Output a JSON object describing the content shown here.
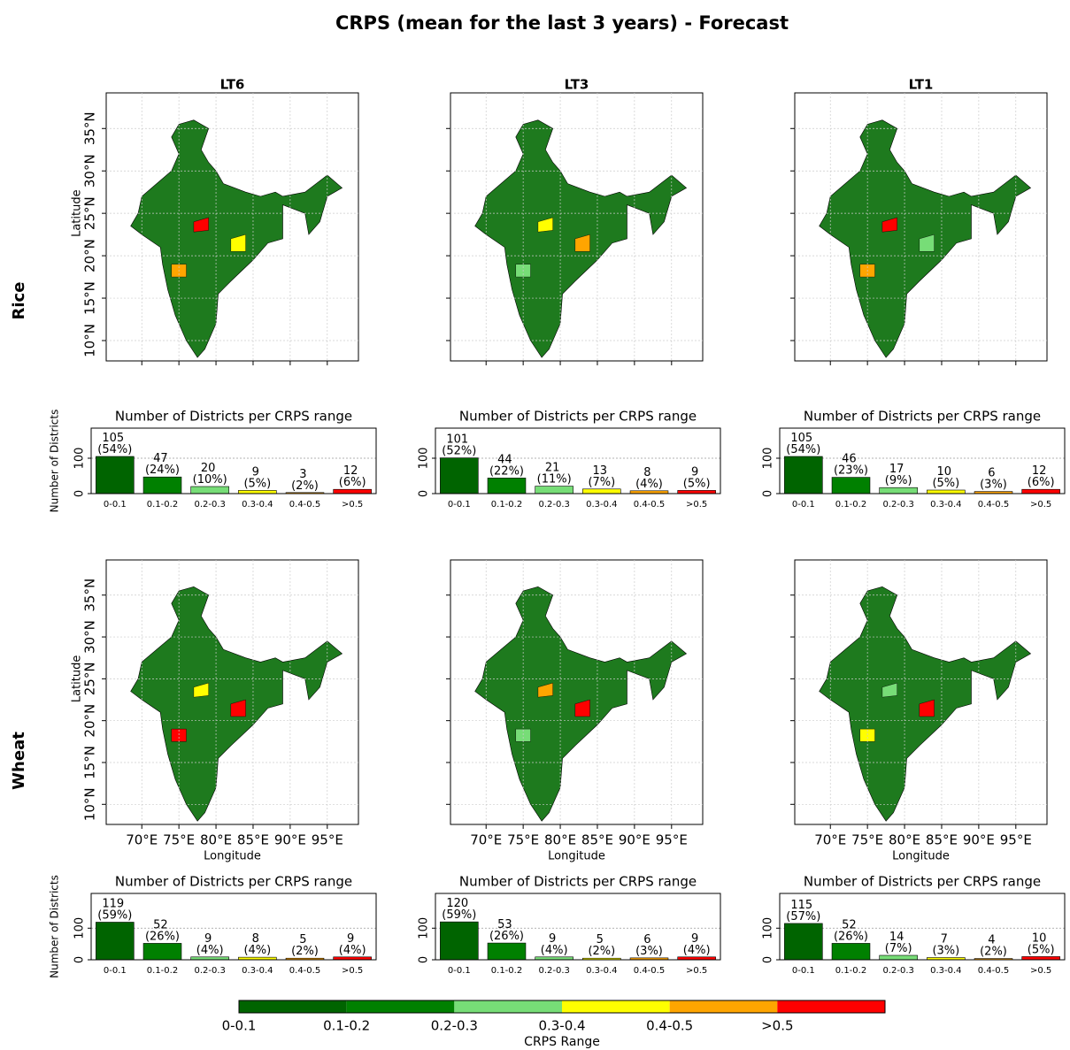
{
  "title": "CRPS (mean for the last 3 years) - Forecast",
  "rows": [
    "Rice",
    "Wheat"
  ],
  "columns": [
    "LT6",
    "LT3",
    "LT1"
  ],
  "map": {
    "xlabel": "Longitude",
    "ylabel": "Latitude",
    "xlim": [
      65.2,
      99.2
    ],
    "ylim": [
      7.6,
      39.2
    ],
    "xticks": [
      {
        "value": 70,
        "label": "70°E"
      },
      {
        "value": 75,
        "label": "75°E"
      },
      {
        "value": 80,
        "label": "80°E"
      },
      {
        "value": 85,
        "label": "85°E"
      },
      {
        "value": 90,
        "label": "90°E"
      },
      {
        "value": 95,
        "label": "95°E"
      }
    ],
    "yticks": [
      {
        "value": 10,
        "label": "10°N"
      },
      {
        "value": 15,
        "label": "15°N"
      },
      {
        "value": 20,
        "label": "20°N"
      },
      {
        "value": 25,
        "label": "25°N"
      },
      {
        "value": 30,
        "label": "30°N"
      },
      {
        "value": 35,
        "label": "35°N"
      }
    ],
    "grid": true
  },
  "colorbar": {
    "label": "CRPS Range",
    "categories": [
      "0-0.1",
      "0.1-0.2",
      "0.2-0.3",
      "0.3-0.4",
      "0.4-0.5",
      ">0.5"
    ],
    "colors": [
      "#006400",
      "#008000",
      "#77dd77",
      "#ffff00",
      "#ffa500",
      "#ff0000"
    ]
  },
  "chart_data": [
    {
      "type": "bar",
      "title": "Number of Districts per CRPS range",
      "ylabel": "Number of Districts",
      "categories": [
        "0-0.1",
        "0.1-0.2",
        "0.2-0.3",
        "0.3-0.4",
        "0.4-0.5",
        ">0.5"
      ],
      "values": [
        105,
        47,
        20,
        9,
        3,
        12
      ],
      "value_labels": [
        "105 (54%)",
        "47 (24%)",
        "20 (10%)",
        "9 (5%)",
        "3 (2%)",
        "12 (6%)"
      ],
      "colors": [
        "#006400",
        "#008000",
        "#77dd77",
        "#ffff00",
        "#ffa500",
        "#ff0000"
      ],
      "ylim": [
        0,
        185
      ],
      "yticks": [
        0,
        100
      ]
    },
    {
      "type": "bar",
      "title": "Number of Districts per CRPS range",
      "categories": [
        "0-0.1",
        "0.1-0.2",
        "0.2-0.3",
        "0.3-0.4",
        "0.4-0.5",
        ">0.5"
      ],
      "values": [
        101,
        44,
        21,
        13,
        8,
        9
      ],
      "value_labels": [
        "101 (52%)",
        "44 (22%)",
        "21 (11%)",
        "13 (7%)",
        "8 (4%)",
        "9 (5%)"
      ],
      "colors": [
        "#006400",
        "#008000",
        "#77dd77",
        "#ffff00",
        "#ffa500",
        "#ff0000"
      ],
      "ylim": [
        0,
        185
      ],
      "yticks": [
        0,
        100
      ]
    },
    {
      "type": "bar",
      "title": "Number of Districts per CRPS range",
      "categories": [
        "0-0.1",
        "0.1-0.2",
        "0.2-0.3",
        "0.3-0.4",
        "0.4-0.5",
        ">0.5"
      ],
      "values": [
        105,
        46,
        17,
        10,
        6,
        12
      ],
      "value_labels": [
        "105 (54%)",
        "46 (23%)",
        "17 (9%)",
        "10 (5%)",
        "6 (3%)",
        "12 (6%)"
      ],
      "colors": [
        "#006400",
        "#008000",
        "#77dd77",
        "#ffff00",
        "#ffa500",
        "#ff0000"
      ],
      "ylim": [
        0,
        185
      ],
      "yticks": [
        0,
        100
      ]
    },
    {
      "type": "bar",
      "title": "Number of Districts per CRPS range",
      "ylabel": "Number of Districts",
      "categories": [
        "0-0.1",
        "0.1-0.2",
        "0.2-0.3",
        "0.3-0.4",
        "0.4-0.5",
        ">0.5"
      ],
      "values": [
        119,
        52,
        9,
        8,
        5,
        9
      ],
      "value_labels": [
        "119 (59%)",
        "52 (26%)",
        "9 (4%)",
        "8 (4%)",
        "5 (2%)",
        "9 (4%)"
      ],
      "colors": [
        "#006400",
        "#008000",
        "#77dd77",
        "#ffff00",
        "#ffa500",
        "#ff0000"
      ],
      "ylim": [
        0,
        210
      ],
      "yticks": [
        0,
        100
      ]
    },
    {
      "type": "bar",
      "title": "Number of Districts per CRPS range",
      "categories": [
        "0-0.1",
        "0.1-0.2",
        "0.2-0.3",
        "0.3-0.4",
        "0.4-0.5",
        ">0.5"
      ],
      "values": [
        120,
        53,
        9,
        5,
        6,
        9
      ],
      "value_labels": [
        "120 (59%)",
        "53 (26%)",
        "9 (4%)",
        "5 (2%)",
        "6 (3%)",
        "9 (4%)"
      ],
      "colors": [
        "#006400",
        "#008000",
        "#77dd77",
        "#ffff00",
        "#ffa500",
        "#ff0000"
      ],
      "ylim": [
        0,
        210
      ],
      "yticks": [
        0,
        100
      ]
    },
    {
      "type": "bar",
      "title": "Number of Districts per CRPS range",
      "categories": [
        "0-0.1",
        "0.1-0.2",
        "0.2-0.3",
        "0.3-0.4",
        "0.4-0.5",
        ">0.5"
      ],
      "values": [
        115,
        52,
        14,
        7,
        4,
        10
      ],
      "value_labels": [
        "115 (57%)",
        "52 (26%)",
        "14 (7%)",
        "7 (3%)",
        "4 (2%)",
        "10 (5%)"
      ],
      "colors": [
        "#006400",
        "#008000",
        "#77dd77",
        "#ffff00",
        "#ffa500",
        "#ff0000"
      ],
      "ylim": [
        0,
        210
      ],
      "yticks": [
        0,
        100
      ]
    }
  ]
}
